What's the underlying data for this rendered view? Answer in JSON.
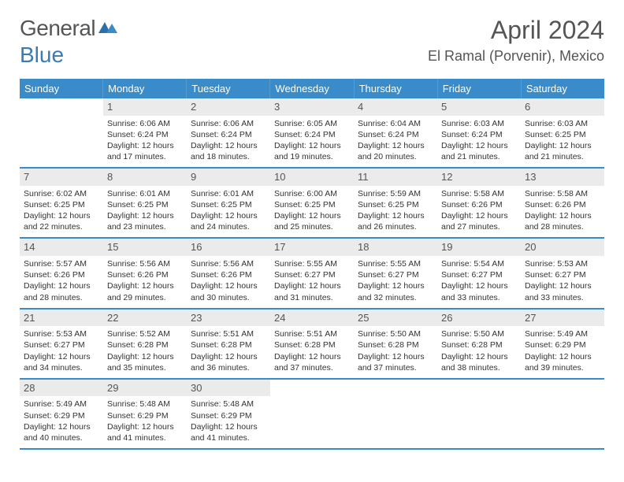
{
  "logo": {
    "part1": "General",
    "part2": "Blue"
  },
  "title": "April 2024",
  "location": "El Ramal (Porvenir), Mexico",
  "header_bg": "#3a8bc9",
  "border_color": "#3a8bc9",
  "daynum_bg": "#ebebeb",
  "dow": [
    "Sunday",
    "Monday",
    "Tuesday",
    "Wednesday",
    "Thursday",
    "Friday",
    "Saturday"
  ],
  "weeks": [
    [
      {
        "n": "",
        "empty": true
      },
      {
        "n": "1",
        "sr": "Sunrise: 6:06 AM",
        "ss": "Sunset: 6:24 PM",
        "dl": "Daylight: 12 hours and 17 minutes."
      },
      {
        "n": "2",
        "sr": "Sunrise: 6:06 AM",
        "ss": "Sunset: 6:24 PM",
        "dl": "Daylight: 12 hours and 18 minutes."
      },
      {
        "n": "3",
        "sr": "Sunrise: 6:05 AM",
        "ss": "Sunset: 6:24 PM",
        "dl": "Daylight: 12 hours and 19 minutes."
      },
      {
        "n": "4",
        "sr": "Sunrise: 6:04 AM",
        "ss": "Sunset: 6:24 PM",
        "dl": "Daylight: 12 hours and 20 minutes."
      },
      {
        "n": "5",
        "sr": "Sunrise: 6:03 AM",
        "ss": "Sunset: 6:24 PM",
        "dl": "Daylight: 12 hours and 21 minutes."
      },
      {
        "n": "6",
        "sr": "Sunrise: 6:03 AM",
        "ss": "Sunset: 6:25 PM",
        "dl": "Daylight: 12 hours and 21 minutes."
      }
    ],
    [
      {
        "n": "7",
        "sr": "Sunrise: 6:02 AM",
        "ss": "Sunset: 6:25 PM",
        "dl": "Daylight: 12 hours and 22 minutes."
      },
      {
        "n": "8",
        "sr": "Sunrise: 6:01 AM",
        "ss": "Sunset: 6:25 PM",
        "dl": "Daylight: 12 hours and 23 minutes."
      },
      {
        "n": "9",
        "sr": "Sunrise: 6:01 AM",
        "ss": "Sunset: 6:25 PM",
        "dl": "Daylight: 12 hours and 24 minutes."
      },
      {
        "n": "10",
        "sr": "Sunrise: 6:00 AM",
        "ss": "Sunset: 6:25 PM",
        "dl": "Daylight: 12 hours and 25 minutes."
      },
      {
        "n": "11",
        "sr": "Sunrise: 5:59 AM",
        "ss": "Sunset: 6:25 PM",
        "dl": "Daylight: 12 hours and 26 minutes."
      },
      {
        "n": "12",
        "sr": "Sunrise: 5:58 AM",
        "ss": "Sunset: 6:26 PM",
        "dl": "Daylight: 12 hours and 27 minutes."
      },
      {
        "n": "13",
        "sr": "Sunrise: 5:58 AM",
        "ss": "Sunset: 6:26 PM",
        "dl": "Daylight: 12 hours and 28 minutes."
      }
    ],
    [
      {
        "n": "14",
        "sr": "Sunrise: 5:57 AM",
        "ss": "Sunset: 6:26 PM",
        "dl": "Daylight: 12 hours and 28 minutes."
      },
      {
        "n": "15",
        "sr": "Sunrise: 5:56 AM",
        "ss": "Sunset: 6:26 PM",
        "dl": "Daylight: 12 hours and 29 minutes."
      },
      {
        "n": "16",
        "sr": "Sunrise: 5:56 AM",
        "ss": "Sunset: 6:26 PM",
        "dl": "Daylight: 12 hours and 30 minutes."
      },
      {
        "n": "17",
        "sr": "Sunrise: 5:55 AM",
        "ss": "Sunset: 6:27 PM",
        "dl": "Daylight: 12 hours and 31 minutes."
      },
      {
        "n": "18",
        "sr": "Sunrise: 5:55 AM",
        "ss": "Sunset: 6:27 PM",
        "dl": "Daylight: 12 hours and 32 minutes."
      },
      {
        "n": "19",
        "sr": "Sunrise: 5:54 AM",
        "ss": "Sunset: 6:27 PM",
        "dl": "Daylight: 12 hours and 33 minutes."
      },
      {
        "n": "20",
        "sr": "Sunrise: 5:53 AM",
        "ss": "Sunset: 6:27 PM",
        "dl": "Daylight: 12 hours and 33 minutes."
      }
    ],
    [
      {
        "n": "21",
        "sr": "Sunrise: 5:53 AM",
        "ss": "Sunset: 6:27 PM",
        "dl": "Daylight: 12 hours and 34 minutes."
      },
      {
        "n": "22",
        "sr": "Sunrise: 5:52 AM",
        "ss": "Sunset: 6:28 PM",
        "dl": "Daylight: 12 hours and 35 minutes."
      },
      {
        "n": "23",
        "sr": "Sunrise: 5:51 AM",
        "ss": "Sunset: 6:28 PM",
        "dl": "Daylight: 12 hours and 36 minutes."
      },
      {
        "n": "24",
        "sr": "Sunrise: 5:51 AM",
        "ss": "Sunset: 6:28 PM",
        "dl": "Daylight: 12 hours and 37 minutes."
      },
      {
        "n": "25",
        "sr": "Sunrise: 5:50 AM",
        "ss": "Sunset: 6:28 PM",
        "dl": "Daylight: 12 hours and 37 minutes."
      },
      {
        "n": "26",
        "sr": "Sunrise: 5:50 AM",
        "ss": "Sunset: 6:28 PM",
        "dl": "Daylight: 12 hours and 38 minutes."
      },
      {
        "n": "27",
        "sr": "Sunrise: 5:49 AM",
        "ss": "Sunset: 6:29 PM",
        "dl": "Daylight: 12 hours and 39 minutes."
      }
    ],
    [
      {
        "n": "28",
        "sr": "Sunrise: 5:49 AM",
        "ss": "Sunset: 6:29 PM",
        "dl": "Daylight: 12 hours and 40 minutes."
      },
      {
        "n": "29",
        "sr": "Sunrise: 5:48 AM",
        "ss": "Sunset: 6:29 PM",
        "dl": "Daylight: 12 hours and 41 minutes."
      },
      {
        "n": "30",
        "sr": "Sunrise: 5:48 AM",
        "ss": "Sunset: 6:29 PM",
        "dl": "Daylight: 12 hours and 41 minutes."
      },
      {
        "n": "",
        "empty": true
      },
      {
        "n": "",
        "empty": true
      },
      {
        "n": "",
        "empty": true
      },
      {
        "n": "",
        "empty": true
      }
    ]
  ]
}
